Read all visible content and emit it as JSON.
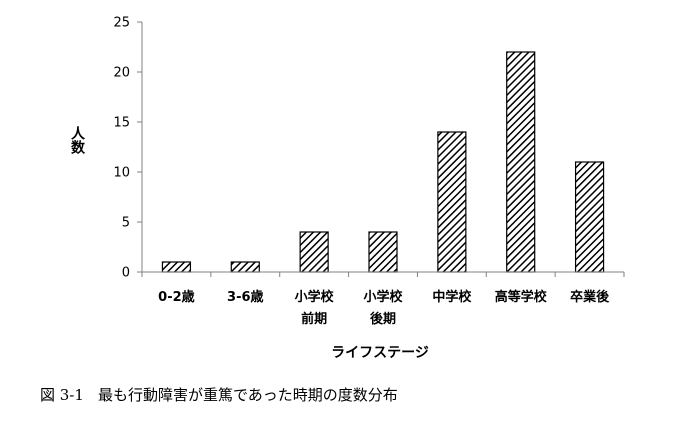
{
  "chart_data": {
    "type": "bar",
    "categories": [
      [
        "0-2歳"
      ],
      [
        "3-6歳"
      ],
      [
        "小学校",
        "前期"
      ],
      [
        "小学校",
        "後期"
      ],
      [
        "中学校"
      ],
      [
        "高等学校"
      ],
      [
        "卒業後"
      ]
    ],
    "values": [
      1,
      1,
      4,
      4,
      14,
      22,
      11
    ],
    "ylabel": "人数",
    "xlabel": "ライフステージ",
    "ylim": [
      0,
      25
    ],
    "yticks": [
      0,
      5,
      10,
      15,
      20,
      25
    ],
    "grid": false,
    "bar_fill": "diagonal-hatch",
    "colors": {
      "bar_stroke": "#000000",
      "hatch": "#000000",
      "axis": "#808080"
    }
  },
  "caption": {
    "number": "図 3-1",
    "text": "最も行動障害が重篤であった時期の度数分布"
  }
}
